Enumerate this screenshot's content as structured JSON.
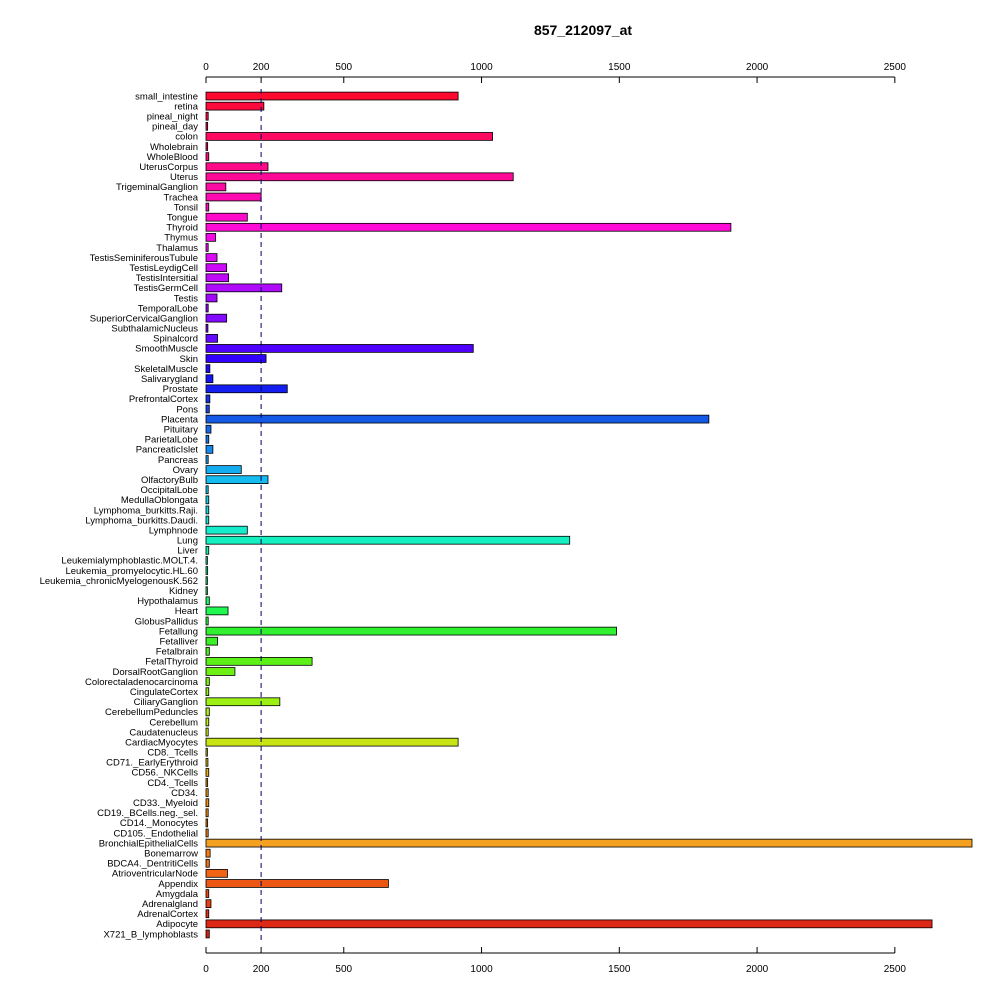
{
  "chart_data": {
    "type": "bar",
    "orientation": "horizontal",
    "title": "857_212097_at",
    "xlabel": "",
    "ylabel": "",
    "xlim": [
      0,
      2780
    ],
    "x_ticks": [
      0,
      200,
      500,
      1000,
      1500,
      2000,
      2500
    ],
    "x_tick_labels": [
      "0",
      "200",
      "500",
      "1000",
      "1500",
      "2000",
      "2500"
    ],
    "reference_line": 200,
    "axis_positions": [
      "top",
      "bottom"
    ],
    "grid": false,
    "categories": [
      "small_intestine",
      "retina",
      "pineal_night",
      "pineal_day",
      "colon",
      "Wholebrain",
      "WholeBlood",
      "UterusCorpus",
      "Uterus",
      "TrigeminalGanglion",
      "Trachea",
      "Tonsil",
      "Tongue",
      "Thyroid",
      "Thymus",
      "Thalamus",
      "TestisSeminiferousTubule",
      "TestisLeydigCell",
      "TestisIntersitial",
      "TestisGermCell",
      "Testis",
      "TemporalLobe",
      "SuperiorCervicalGanglion",
      "SubthalamicNucleus",
      "Spinalcord",
      "SmoothMuscle",
      "Skin",
      "SkeletalMuscle",
      "Salivarygland",
      "Prostate",
      "PrefrontalCortex",
      "Pons",
      "Placenta",
      "Pituitary",
      "ParietalLobe",
      "PancreaticIslet",
      "Pancreas",
      "Ovary",
      "OlfactoryBulb",
      "OccipitalLobe",
      "MedullaOblongata",
      "Lymphoma_burkitts.Raji.",
      "Lymphoma_burkitts.Daudi.",
      "Lymphnode",
      "Lung",
      "Liver",
      "Leukemialymphoblastic.MOLT.4.",
      "Leukemia_promyelocytic.HL.60",
      "Leukemia_chronicMyelogenousK.562",
      "Kidney",
      "Hypothalamus",
      "Heart",
      "GlobusPallidus",
      "Fetallung",
      "Fetalliver",
      "Fetalbrain",
      "FetalThyroid",
      "DorsalRootGanglion",
      "Colorectaladenocarcinoma",
      "CingulateCortex",
      "CiliaryGanglion",
      "CerebellumPeduncles",
      "Cerebellum",
      "Caudatenucleus",
      "CardiacMyocytes",
      "CD8._Tcells",
      "CD71._EarlyErythroid",
      "CD56._NKCells",
      "CD4._Tcells",
      "CD34.",
      "CD33._Myeloid",
      "CD19._BCells.neg._sel.",
      "CD14._Monocytes",
      "CD105._Endothelial",
      "BronchialEpithelialCells",
      "Bonemarrow",
      "BDCA4._DentritiCells",
      "AtrioventricularNode",
      "Appendix",
      "Amygdala",
      "Adrenalgland",
      "AdrenalCortex",
      "Adipocyte",
      "X721_B_lymphoblasts"
    ],
    "values": [
      915,
      210,
      8,
      6,
      1040,
      6,
      10,
      225,
      1115,
      72,
      200,
      10,
      150,
      1905,
      35,
      8,
      40,
      75,
      82,
      275,
      40,
      8,
      75,
      7,
      42,
      970,
      218,
      14,
      25,
      295,
      14,
      12,
      1825,
      18,
      10,
      25,
      8,
      128,
      225,
      8,
      10,
      10,
      10,
      150,
      1320,
      10,
      5,
      6,
      5,
      5,
      12,
      80,
      8,
      1490,
      42,
      12,
      385,
      105,
      12,
      10,
      268,
      12,
      10,
      8,
      915,
      5,
      7,
      10,
      6,
      8,
      10,
      8,
      6,
      8,
      2780,
      15,
      12,
      78,
      662,
      10,
      18,
      10,
      2635,
      12
    ],
    "colors": [
      "#FF0A2E",
      "#FF0A3C",
      "#FF0A48",
      "#FF0A55",
      "#FF0A62",
      "#FF0A6F",
      "#FF0A7C",
      "#FF0A89",
      "#FF0A96",
      "#FF0AA3",
      "#FF0AB0",
      "#FF0ABD",
      "#FF0ACA",
      "#FF0AD7",
      "#F50AE6",
      "#E80AF0",
      "#DA0AF5",
      "#CC0AF7",
      "#BE0AF9",
      "#AF0AFB",
      "#A00AFC",
      "#910AFD",
      "#820AFE",
      "#730AFF",
      "#640AFF",
      "#5000FF",
      "#3200FF",
      "#1E0AFF",
      "#1414F5",
      "#141EF0",
      "#1430EB",
      "#1444E6",
      "#1458E6",
      "#1468E8",
      "#1478EA",
      "#1488EC",
      "#1498EE",
      "#14ACF0",
      "#14BCF0",
      "#14C8EC",
      "#14D2E6",
      "#14DCE0",
      "#14E4D8",
      "#14ECCC",
      "#14F0C0",
      "#14F2B0",
      "#14F4A0",
      "#14F690",
      "#14F880",
      "#14F870",
      "#14F860",
      "#1EF850",
      "#28F840",
      "#30F030",
      "#3CF028",
      "#4CF020",
      "#5CF018",
      "#6CF014",
      "#7CF014",
      "#8CF014",
      "#9CF014",
      "#ACF014",
      "#BCF014",
      "#CCF014",
      "#C8E414",
      "#D0D214",
      "#D8C014",
      "#E0AE14",
      "#E8A014",
      "#EE9614",
      "#F29014",
      "#F48A14",
      "#F68414",
      "#F88014",
      "#F4A020",
      "#F47C14",
      "#F47014",
      "#F06414",
      "#EC5814",
      "#E84C14",
      "#E44014",
      "#E03414",
      "#DC2814",
      "#D81E14"
    ]
  }
}
